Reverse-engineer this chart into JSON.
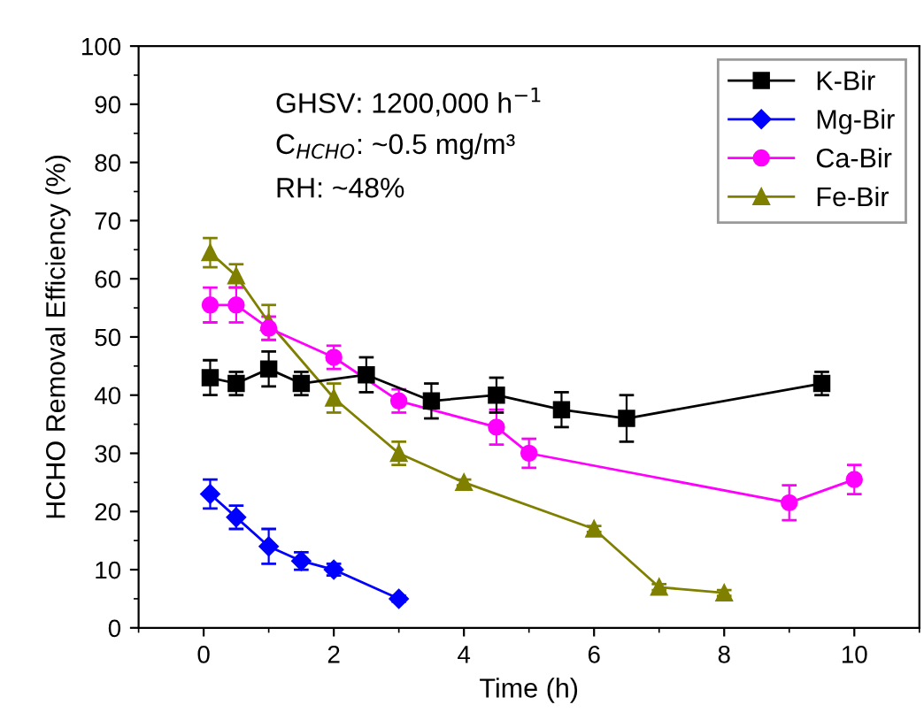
{
  "chart_data": {
    "type": "line",
    "xlabel": "Time (h)",
    "ylabel": "HCHO Removal Efficiency (%)",
    "xlim": [
      -1,
      11
    ],
    "xticks": [
      0,
      2,
      4,
      6,
      8,
      10
    ],
    "ylim": [
      0,
      100
    ],
    "yticks": [
      0,
      10,
      20,
      30,
      40,
      50,
      60,
      70,
      80,
      90,
      100
    ],
    "legend": "top right",
    "grid": false,
    "annotations": [
      "GHSV: 1200,000 h$^{−1}$",
      "C$_{HCHO}$: ~0.5 mg/m³",
      "RH: ~48%"
    ],
    "series": [
      {
        "name": "K-Bir",
        "color": "#000000",
        "marker": "square",
        "x": [
          0.1,
          0.5,
          1,
          1.5,
          2.5,
          3.5,
          4.5,
          5.5,
          6.5,
          9.5
        ],
        "values": [
          43,
          42,
          44.5,
          42,
          43.5,
          39,
          40,
          37.5,
          36,
          42
        ],
        "errors": [
          3,
          2,
          3,
          2,
          3,
          3,
          3,
          3,
          4,
          2
        ]
      },
      {
        "name": "Mg-Bir",
        "color": "#0000ff",
        "marker": "diamond",
        "x": [
          0.1,
          0.5,
          1,
          1.5,
          2,
          3
        ],
        "values": [
          23,
          19,
          14,
          11.5,
          10,
          5
        ],
        "errors": [
          2.5,
          2,
          3,
          1.5,
          1,
          0.5
        ]
      },
      {
        "name": "Ca-Bir",
        "color": "#ff00ff",
        "marker": "circle",
        "x": [
          0.1,
          0.5,
          1,
          2,
          3,
          4.5,
          5,
          9,
          10
        ],
        "values": [
          55.5,
          55.5,
          51.5,
          46.5,
          39,
          34.5,
          30,
          21.5,
          25.5
        ],
        "errors": [
          3,
          3,
          2,
          2,
          2,
          3,
          2.5,
          3,
          2.5
        ]
      },
      {
        "name": "Fe-Bir",
        "color": "#808000",
        "marker": "triangle",
        "x": [
          0.1,
          0.5,
          1,
          2,
          3,
          4,
          6,
          7,
          8
        ],
        "values": [
          64.5,
          60.5,
          52.5,
          39.5,
          30,
          25,
          17,
          7,
          6
        ],
        "errors": [
          2.5,
          2,
          3,
          2.5,
          2,
          0.5,
          0.5,
          0.5,
          0.5
        ]
      }
    ]
  }
}
